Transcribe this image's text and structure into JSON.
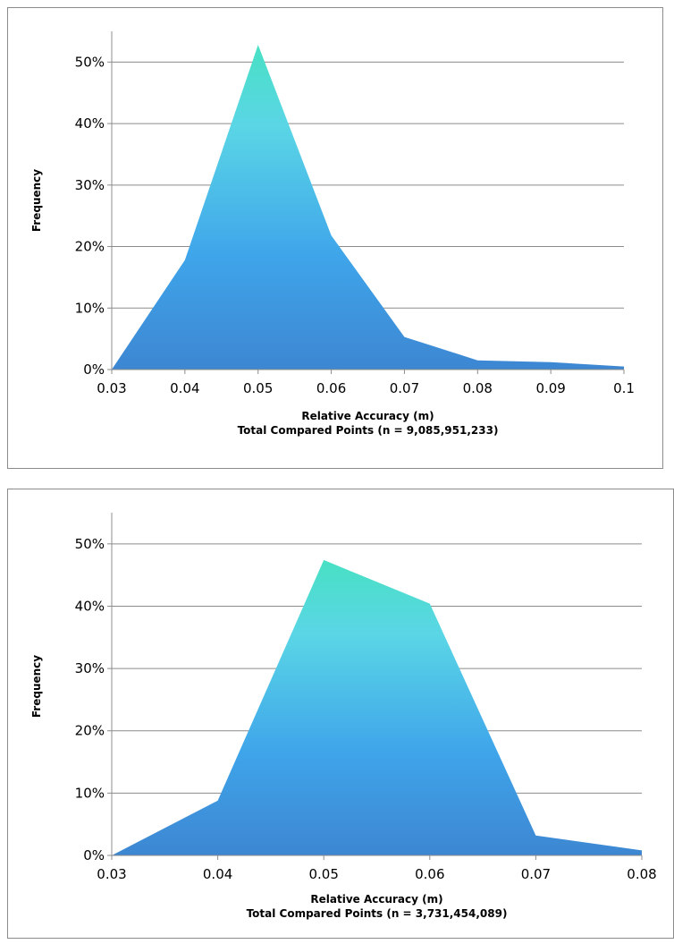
{
  "chart_data": [
    {
      "type": "area",
      "title": "",
      "ylabel": "Frequency",
      "xlabel": "Relative Accuracy (m)",
      "xlabel_line2": "Total Compared Points (n = 9,085,951,233)",
      "x": [
        0.03,
        0.04,
        0.05,
        0.06,
        0.07,
        0.08,
        0.09,
        0.1
      ],
      "x_tick_labels": [
        "0.03",
        "0.04",
        "0.05",
        "0.06",
        "0.07",
        "0.08",
        "0.09",
        "0.1"
      ],
      "values": [
        0.0,
        0.178,
        0.528,
        0.218,
        0.053,
        0.015,
        0.012,
        0.005
      ],
      "ylim": [
        0,
        0.55
      ],
      "y_ticks": [
        0,
        0.1,
        0.2,
        0.3,
        0.4,
        0.5
      ],
      "y_tick_labels": [
        "0%",
        "10%",
        "20%",
        "30%",
        "40%",
        "50%"
      ],
      "grid": true,
      "fill_gradient": {
        "top": "#48e0c3",
        "mid": "#5ad6e6",
        "lower": "#3fa5ea",
        "bottom": "#3d86d2"
      }
    },
    {
      "type": "area",
      "title": "",
      "ylabel": "Frequency",
      "xlabel": "Relative Accuracy (m)",
      "xlabel_line2": "Total Compared Points (n = 3,731,454,089)",
      "x": [
        0.03,
        0.04,
        0.05,
        0.06,
        0.07,
        0.08
      ],
      "x_tick_labels": [
        "0.03",
        "0.04",
        "0.05",
        "0.06",
        "0.07",
        "0.08"
      ],
      "values": [
        0.0,
        0.088,
        0.474,
        0.404,
        0.032,
        0.008
      ],
      "ylim": [
        0,
        0.55
      ],
      "y_ticks": [
        0,
        0.1,
        0.2,
        0.3,
        0.4,
        0.5
      ],
      "y_tick_labels": [
        "0%",
        "10%",
        "20%",
        "30%",
        "40%",
        "50%"
      ],
      "grid": true,
      "fill_gradient": {
        "top": "#48e0c3",
        "mid": "#5ad6e6",
        "lower": "#3fa5ea",
        "bottom": "#3d86d2"
      }
    }
  ]
}
